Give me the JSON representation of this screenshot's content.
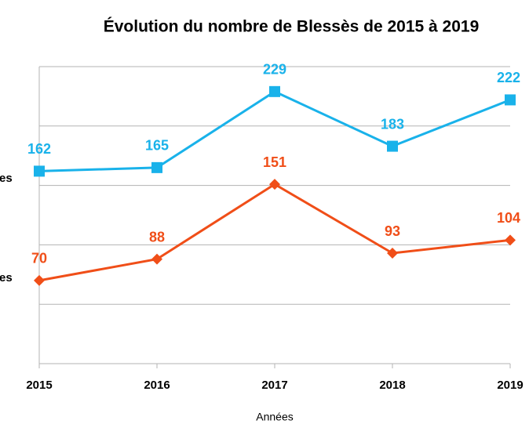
{
  "chart_data": {
    "type": "line",
    "title": "Évolution du nombre de Blessès de 2015 à 2019",
    "x_label": "Années",
    "annotations": [
      "es",
      "es"
    ],
    "categories": [
      "2015",
      "2016",
      "2017",
      "2018",
      "2019"
    ],
    "series": [
      {
        "color": "#19b2ea",
        "marker": "square",
        "values": [
          162,
          165,
          229,
          183,
          222
        ]
      },
      {
        "color": "#f04e18",
        "marker": "diamond",
        "values": [
          70,
          88,
          151,
          93,
          104
        ]
      }
    ],
    "ylim": [
      0,
      250
    ],
    "yticks": [
      0,
      50,
      100,
      150,
      200,
      250
    ],
    "grid": true
  }
}
